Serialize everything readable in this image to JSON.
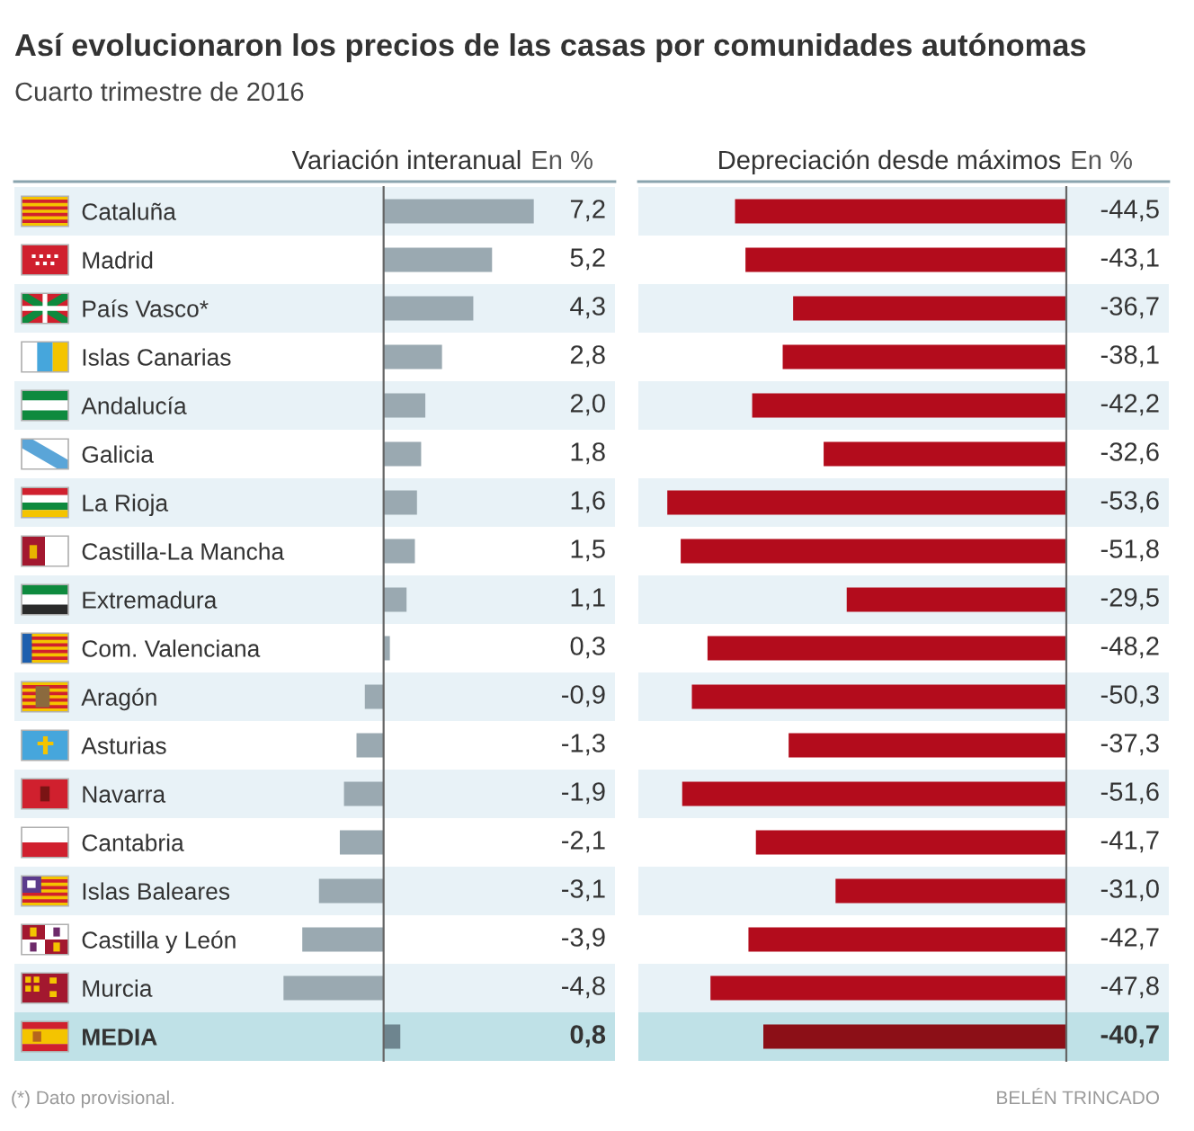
{
  "chart_data": [
    {
      "type": "bar",
      "orientation": "horizontal",
      "title": "Así evolucionaron los precios de las casas por comunidades autónomas",
      "subtitle": "Cuarto trimestre de 2016",
      "xlabel": "Variación interanual",
      "annotations": [
        "En %",
        "(*) Dato provisional."
      ],
      "categories": [
        "Cataluña",
        "Madrid",
        "País Vasco*",
        "Islas Canarias",
        "Andalucía",
        "Galicia",
        "La Rioja",
        "Castilla-La Mancha",
        "Extremadura",
        "Com. Valenciana",
        "Aragón",
        "Asturias",
        "Navarra",
        "Cantabria",
        "Islas Baleares",
        "Castilla y León",
        "Murcia",
        "MEDIA"
      ],
      "values": [
        7.2,
        5.2,
        4.3,
        2.8,
        2.0,
        1.8,
        1.6,
        1.5,
        1.1,
        0.3,
        -0.9,
        -1.3,
        -1.9,
        -2.1,
        -3.1,
        -3.9,
        -4.8,
        0.8
      ],
      "value_labels": [
        "7,2",
        "5,2",
        "4,3",
        "2,8",
        "2,0",
        "1,8",
        "1,6",
        "1,5",
        "1,1",
        "0,3",
        "-0,9",
        "-1,3",
        "-1,9",
        "-2,1",
        "-3,1",
        "-3,9",
        "-4,8",
        "0,8"
      ],
      "colors": [
        "#9aa9b1",
        "#9aa9b1",
        "#9aa9b1",
        "#9aa9b1",
        "#9aa9b1",
        "#9aa9b1",
        "#9aa9b1",
        "#9aa9b1",
        "#9aa9b1",
        "#9aa9b1",
        "#9aa9b1",
        "#9aa9b1",
        "#9aa9b1",
        "#9aa9b1",
        "#9aa9b1",
        "#9aa9b1",
        "#9aa9b1",
        "#6e858f"
      ],
      "tick_labels": "y"
    },
    {
      "type": "bar",
      "orientation": "horizontal",
      "xlabel": "Depreciación desde máximos",
      "annotations": [
        "En %",
        "BELÉN TRINCADO"
      ],
      "values": [
        -44.5,
        -43.1,
        -36.7,
        -38.1,
        -42.2,
        -32.6,
        -53.6,
        -51.8,
        -29.5,
        -48.2,
        -50.3,
        -37.3,
        -51.6,
        -41.7,
        -31.0,
        -42.7,
        -47.8,
        -40.7
      ],
      "value_labels": [
        "-44,5",
        "-43,1",
        "-36,7",
        "-38,1",
        "-42,2",
        "-32,6",
        "-53,6",
        "-51,8",
        "-29,5",
        "-48,2",
        "-50,3",
        "-37,3",
        "-51,6",
        "-41,7",
        "-31,0",
        "-42,7",
        "-47,8",
        "-40,7"
      ],
      "colors": [
        "#b30c1c",
        "#b30c1c",
        "#b30c1c",
        "#b30c1c",
        "#b30c1c",
        "#b30c1c",
        "#b30c1c",
        "#b30c1c",
        "#b30c1c",
        "#b30c1c",
        "#b30c1c",
        "#b30c1c",
        "#b30c1c",
        "#b30c1c",
        "#b30c1c",
        "#b30c1c",
        "#b30c1c",
        "#8c0f17"
      ]
    }
  ]
}
